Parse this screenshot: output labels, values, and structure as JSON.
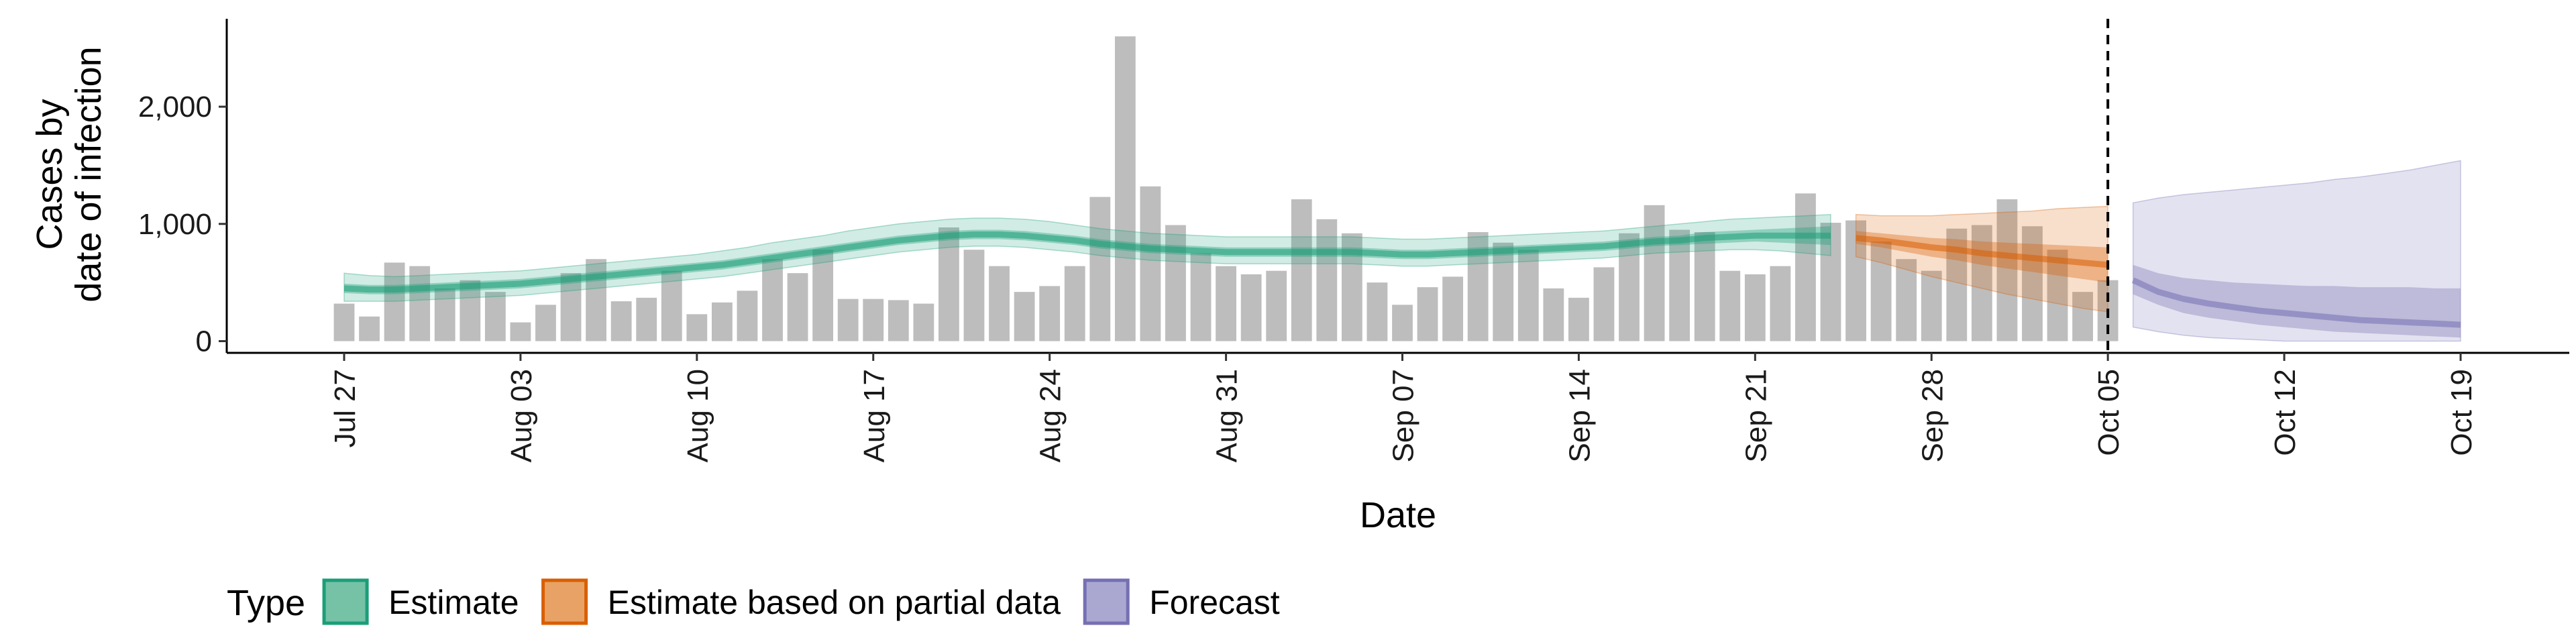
{
  "chart_data": {
    "type": "bar",
    "xlabel": "Date",
    "ylabel_lines": [
      "Cases by",
      "date of infection"
    ],
    "ylim": [
      -100,
      2750
    ],
    "y_ticks": [
      0,
      1000,
      2000
    ],
    "y_tick_labels": [
      "0",
      "1,000",
      "2,000"
    ],
    "x_ticks": [
      "2020-07-27",
      "2020-08-03",
      "2020-08-10",
      "2020-08-17",
      "2020-08-24",
      "2020-08-31",
      "2020-09-07",
      "2020-09-14",
      "2020-09-21",
      "2020-09-28",
      "2020-10-05",
      "2020-10-12",
      "2020-10-19"
    ],
    "x_tick_labels": [
      "Jul 27",
      "Aug 03",
      "Aug 10",
      "Aug 17",
      "Aug 24",
      "Aug 31",
      "Sep 07",
      "Sep 14",
      "Sep 21",
      "Sep 28",
      "Oct 05",
      "Oct 12",
      "Oct 19"
    ],
    "x_range": [
      "2020-07-27",
      "2020-10-19"
    ],
    "bars_start": "2020-07-27",
    "bar_color": "#bdbdbd",
    "bars": [
      320,
      210,
      670,
      640,
      450,
      520,
      420,
      160,
      310,
      580,
      700,
      340,
      370,
      600,
      230,
      330,
      430,
      700,
      580,
      780,
      360,
      360,
      350,
      320,
      970,
      780,
      640,
      420,
      470,
      640,
      1230,
      2600,
      1320,
      990,
      750,
      640,
      570,
      600,
      1210,
      1040,
      920,
      500,
      310,
      460,
      550,
      930,
      840,
      780,
      450,
      370,
      630,
      920,
      1160,
      950,
      930,
      600,
      570,
      640,
      1260,
      1010,
      1030,
      850,
      700,
      600,
      960,
      990,
      1210,
      980,
      780,
      420,
      520
    ],
    "forecast_date": "2020-10-05",
    "series": [
      {
        "name": "Estimate",
        "color": "#1b9e77",
        "start": "2020-07-27",
        "median": [
          450,
          440,
          440,
          450,
          460,
          470,
          480,
          490,
          510,
          530,
          550,
          570,
          590,
          610,
          630,
          650,
          680,
          710,
          740,
          770,
          800,
          830,
          860,
          880,
          900,
          910,
          910,
          900,
          880,
          860,
          830,
          810,
          790,
          780,
          770,
          760,
          760,
          760,
          760,
          760,
          760,
          750,
          740,
          740,
          750,
          760,
          770,
          780,
          790,
          800,
          810,
          830,
          850,
          860,
          880,
          890,
          900,
          900,
          900,
          900
        ],
        "inner_lo": [
          410,
          400,
          400,
          410,
          420,
          430,
          440,
          450,
          470,
          490,
          510,
          530,
          550,
          570,
          590,
          610,
          640,
          670,
          700,
          730,
          760,
          790,
          820,
          840,
          860,
          870,
          870,
          860,
          840,
          820,
          790,
          770,
          750,
          740,
          730,
          720,
          720,
          720,
          720,
          720,
          720,
          710,
          700,
          700,
          710,
          720,
          730,
          740,
          750,
          760,
          770,
          790,
          810,
          820,
          830,
          840,
          850,
          840,
          830,
          820
        ],
        "inner_hi": [
          490,
          480,
          480,
          490,
          500,
          510,
          520,
          530,
          550,
          570,
          590,
          610,
          630,
          650,
          670,
          690,
          720,
          750,
          780,
          810,
          840,
          870,
          900,
          920,
          940,
          950,
          950,
          940,
          920,
          900,
          870,
          850,
          830,
          820,
          810,
          800,
          800,
          800,
          800,
          800,
          800,
          790,
          780,
          780,
          790,
          800,
          810,
          820,
          830,
          840,
          850,
          870,
          890,
          900,
          930,
          940,
          950,
          960,
          970,
          980
        ],
        "outer_lo": [
          340,
          340,
          340,
          350,
          360,
          370,
          380,
          390,
          410,
          430,
          450,
          470,
          490,
          510,
          530,
          550,
          580,
          610,
          640,
          670,
          700,
          730,
          760,
          780,
          800,
          810,
          810,
          800,
          780,
          760,
          730,
          710,
          690,
          680,
          670,
          660,
          660,
          660,
          660,
          660,
          660,
          650,
          640,
          640,
          650,
          660,
          670,
          680,
          690,
          700,
          710,
          730,
          750,
          760,
          770,
          780,
          780,
          770,
          750,
          730
        ],
        "outer_hi": [
          580,
          560,
          550,
          560,
          570,
          580,
          590,
          600,
          620,
          640,
          660,
          680,
          700,
          720,
          740,
          770,
          800,
          840,
          870,
          900,
          940,
          970,
          1000,
          1020,
          1040,
          1050,
          1050,
          1040,
          1020,
          990,
          960,
          940,
          920,
          910,
          900,
          890,
          890,
          890,
          890,
          890,
          890,
          880,
          870,
          870,
          880,
          890,
          900,
          910,
          920,
          930,
          940,
          960,
          980,
          1000,
          1020,
          1040,
          1050,
          1060,
          1070,
          1080
        ]
      },
      {
        "name": "Estimate based on partial data",
        "color": "#d95f02",
        "start": "2020-09-25",
        "median": [
          880,
          860,
          830,
          800,
          780,
          750,
          730,
          710,
          690,
          670,
          650
        ],
        "inner_lo": [
          830,
          800,
          760,
          720,
          690,
          650,
          620,
          590,
          560,
          530,
          500
        ],
        "inner_hi": [
          940,
          920,
          900,
          880,
          870,
          850,
          840,
          830,
          820,
          810,
          800
        ],
        "outer_lo": [
          720,
          670,
          610,
          550,
          500,
          450,
          400,
          360,
          320,
          280,
          250
        ],
        "outer_hi": [
          1080,
          1070,
          1070,
          1070,
          1080,
          1090,
          1100,
          1110,
          1130,
          1140,
          1150
        ]
      },
      {
        "name": "Forecast",
        "color": "#7570b3",
        "start": "2020-10-06",
        "median": [
          520,
          420,
          360,
          320,
          290,
          260,
          240,
          220,
          200,
          180,
          170,
          160,
          150,
          140
        ],
        "inner_lo": [
          400,
          310,
          240,
          200,
          170,
          140,
          120,
          100,
          80,
          70,
          60,
          50,
          40,
          30
        ],
        "inner_hi": [
          650,
          580,
          540,
          520,
          500,
          490,
          480,
          470,
          470,
          460,
          460,
          460,
          450,
          450
        ],
        "outer_lo": [
          120,
          80,
          50,
          30,
          20,
          10,
          0,
          0,
          0,
          0,
          0,
          0,
          0,
          0
        ],
        "outer_hi": [
          1180,
          1220,
          1250,
          1270,
          1290,
          1310,
          1330,
          1350,
          1380,
          1400,
          1430,
          1460,
          1500,
          1540
        ]
      }
    ],
    "legend": {
      "title": "Type",
      "position": "bottom",
      "items": [
        "Estimate",
        "Estimate based on partial data",
        "Forecast"
      ],
      "fills": [
        "#75c2a7",
        "#e8a266",
        "#aaa8d1"
      ],
      "strokes": [
        "#1b9e77",
        "#d95f02",
        "#7570b3"
      ]
    }
  }
}
